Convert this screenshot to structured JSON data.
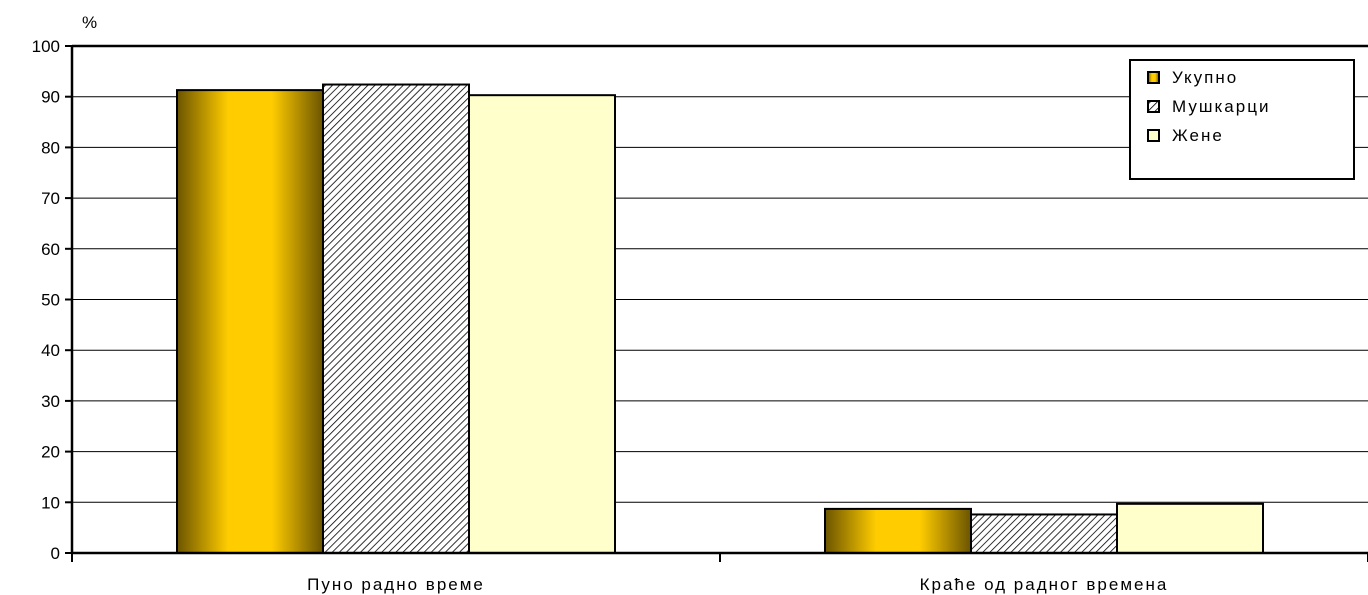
{
  "chart_data": {
    "type": "bar",
    "ylabel": "%",
    "ylim": [
      0,
      100
    ],
    "yticks": [
      0,
      10,
      20,
      30,
      40,
      50,
      60,
      70,
      80,
      90,
      100
    ],
    "grid": true,
    "legend_position": "top-right",
    "categories": [
      "Пуно радно време",
      "Краће од радног времена"
    ],
    "series": [
      {
        "name": "Укупно",
        "values": [
          91.3,
          8.7
        ],
        "color": "#ffcc00",
        "pattern": "gradient"
      },
      {
        "name": "Мушкарци",
        "values": [
          92.4,
          7.6
        ],
        "color": "#ffffff",
        "pattern": "hatch"
      },
      {
        "name": "Жене",
        "values": [
          90.3,
          9.7
        ],
        "color": "#ffffcc",
        "pattern": "solid"
      }
    ]
  }
}
